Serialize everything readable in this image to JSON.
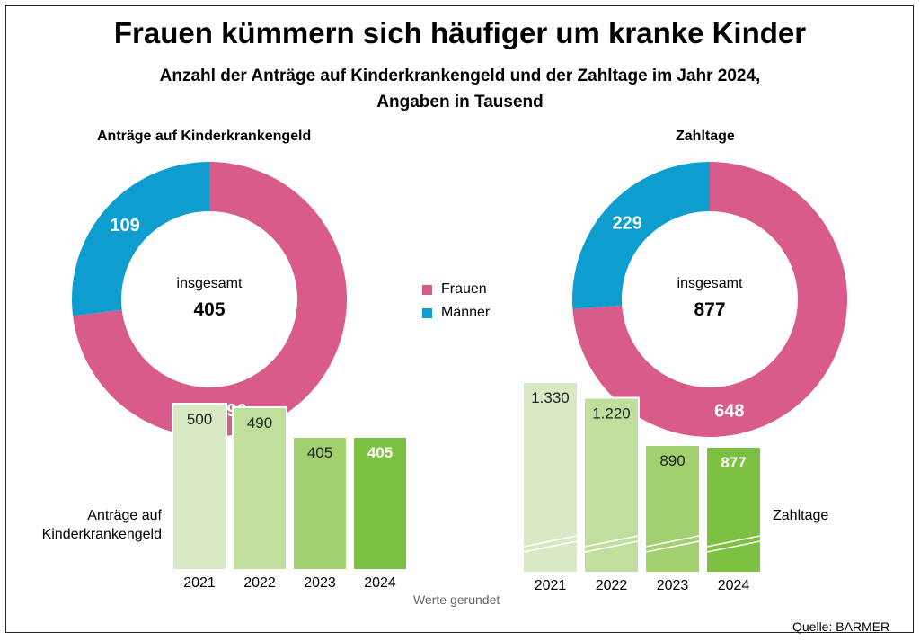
{
  "title": "Frauen kümmern sich häufiger um kranke Kinder",
  "subtitle_line1": "Anzahl der Anträge auf Kinderkrankengeld und der Zahltage im Jahr 2024,",
  "subtitle_line2": "Angaben in Tausend",
  "left_section_title": "Anträge auf Kinderkrankengeld",
  "right_section_title": "Zahltage",
  "legend": [
    {
      "label": "Frauen",
      "color": "#d95b8a"
    },
    {
      "label": "Männer",
      "color": "#0d9ecf"
    }
  ],
  "note": "Werte gerundet",
  "source": "Quelle: BARMER",
  "left_bar_caption_line1": "Anträge auf",
  "left_bar_caption_line2": "Kinderkrankengeld",
  "right_bar_caption": "Zahltage",
  "chart_data": [
    {
      "type": "pie",
      "variant": "donut",
      "title": "Anträge auf Kinderkrankengeld",
      "center_label": "insgesamt",
      "center_value": "405",
      "slices": [
        {
          "name": "Frauen",
          "value": 296,
          "label": "296",
          "color": "#d95b8a"
        },
        {
          "name": "Männer",
          "value": 109,
          "label": "109",
          "color": "#0d9ecf"
        }
      ]
    },
    {
      "type": "pie",
      "variant": "donut",
      "title": "Zahltage",
      "center_label": "insgesamt",
      "center_value": "877",
      "slices": [
        {
          "name": "Frauen",
          "value": 648,
          "label": "648",
          "color": "#d95b8a"
        },
        {
          "name": "Männer",
          "value": 229,
          "label": "229",
          "color": "#0d9ecf"
        }
      ]
    },
    {
      "type": "bar",
      "caption": "Anträge auf Kinderkrankengeld",
      "categories": [
        "2021",
        "2022",
        "2023",
        "2024"
      ],
      "values": [
        500,
        490,
        405,
        405
      ],
      "labels": [
        "500",
        "490",
        "405",
        "405"
      ],
      "colors": [
        "#d8e9c4",
        "#c0df9d",
        "#a2d06f",
        "#7dc143"
      ],
      "label_colors": [
        "#222222",
        "#222222",
        "#222222",
        "#ffffff"
      ],
      "label_bold": [
        false,
        false,
        false,
        true
      ]
    },
    {
      "type": "bar",
      "caption": "Zahltage",
      "axis_break": true,
      "categories": [
        "2021",
        "2022",
        "2023",
        "2024"
      ],
      "values": [
        1330,
        1220,
        890,
        877
      ],
      "labels": [
        "1.330",
        "1.220",
        "890",
        "877"
      ],
      "colors": [
        "#d8e9c4",
        "#c0df9d",
        "#a2d06f",
        "#7dc143"
      ],
      "label_colors": [
        "#222222",
        "#222222",
        "#222222",
        "#ffffff"
      ],
      "label_bold": [
        false,
        false,
        false,
        true
      ]
    }
  ]
}
